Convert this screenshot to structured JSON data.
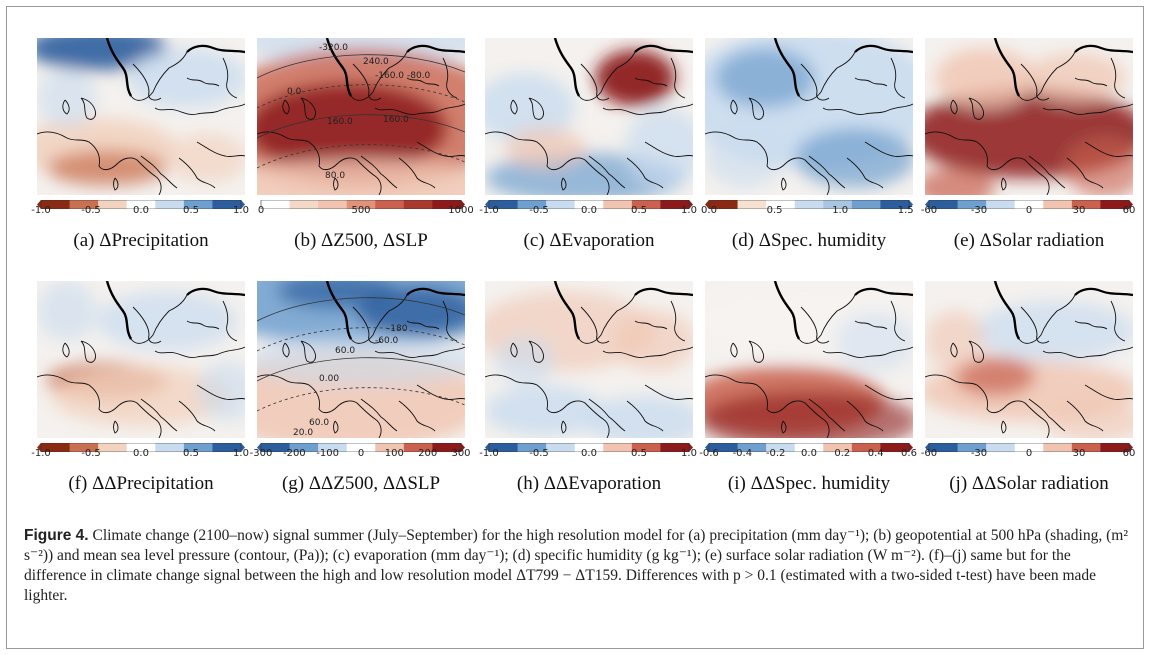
{
  "panels": [
    {
      "id": "a",
      "caption": "(a) ΔPrecipitation",
      "ticks": [
        "-1.0",
        "-0.5",
        "0.0",
        "0.5",
        "1.0"
      ],
      "colormap": "brown-blue"
    },
    {
      "id": "b",
      "caption": "(b) ΔZ500, ΔSLP",
      "ticks": [
        "0",
        "500",
        "1000"
      ],
      "colormap": "blue-red",
      "contour_labels": [
        "-320.0",
        "240.0",
        "-160.0",
        "-80.0",
        "0.0",
        "160.0",
        "160.0",
        "80.0"
      ]
    },
    {
      "id": "c",
      "caption": "(c) ΔEvaporation",
      "ticks": [
        "-1.0",
        "-0.5",
        "0.0",
        "0.5",
        "1.0"
      ],
      "colormap": "blue-red"
    },
    {
      "id": "d",
      "caption": "(d) ΔSpec. humidity",
      "ticks": [
        "0.0",
        "0.5",
        "1.0",
        "1.5"
      ],
      "colormap": "brown-blue"
    },
    {
      "id": "e",
      "caption": "(e) ΔSolar radiation",
      "ticks": [
        "-60",
        "-30",
        "0",
        "30",
        "60"
      ],
      "colormap": "blue-red"
    },
    {
      "id": "f",
      "caption": "(f) ΔΔPrecipitation",
      "ticks": [
        "-1.0",
        "-0.5",
        "0.0",
        "0.5",
        "1.0"
      ],
      "colormap": "brown-blue"
    },
    {
      "id": "g",
      "caption": "(g) ΔΔZ500, ΔΔSLP",
      "ticks": [
        "-300",
        "-200",
        "-100",
        "0",
        "100",
        "200",
        "300"
      ],
      "colormap": "blue-red",
      "contour_labels": [
        "-180",
        "-60.0",
        "60.0",
        "0.00",
        "60.0",
        "20.0"
      ]
    },
    {
      "id": "h",
      "caption": "(h) ΔΔEvaporation",
      "ticks": [
        "-1.0",
        "-0.5",
        "0.0",
        "0.5",
        "1.0"
      ],
      "colormap": "blue-red"
    },
    {
      "id": "i",
      "caption": "(i) ΔΔSpec. humidity",
      "ticks": [
        "-0.6",
        "-0.4",
        "-0.2",
        "0.0",
        "0.2",
        "0.4",
        "0.6"
      ],
      "colormap": "blue-red"
    },
    {
      "id": "j",
      "caption": "(j) ΔΔSolar radiation",
      "ticks": [
        "-60",
        "-30",
        "0",
        "30",
        "60"
      ],
      "colormap": "blue-red"
    }
  ],
  "figure": {
    "label": "Figure 4.",
    "text": "Climate change (2100–now) signal summer (July–September) for the high resolution model for (a) precipitation (mm day⁻¹); (b) geopotential at 500 hPa (shading, (m² s⁻²)) and mean sea level pressure (contour, (Pa)); (c) evaporation (mm day⁻¹); (d) specific humidity (g kg⁻¹); (e) surface solar radiation (W m⁻²). (f)–(j) same but for the difference in climate change signal between the high and low resolution model ΔT799 − ΔT159. Differences with p > 0.1 (estimated with a two-sided t-test) have been made lighter."
  },
  "colors": {
    "blue_dark": "#2c5e9e",
    "blue": "#6f9fcf",
    "blue_light": "#c9dcef",
    "white": "#f7f4f1",
    "red_light": "#f0c4b0",
    "red": "#c9614e",
    "red_dark": "#8c1a1a",
    "brown_dark": "#8a2a12",
    "brown": "#c97050",
    "brown_light": "#f2d3c0"
  }
}
